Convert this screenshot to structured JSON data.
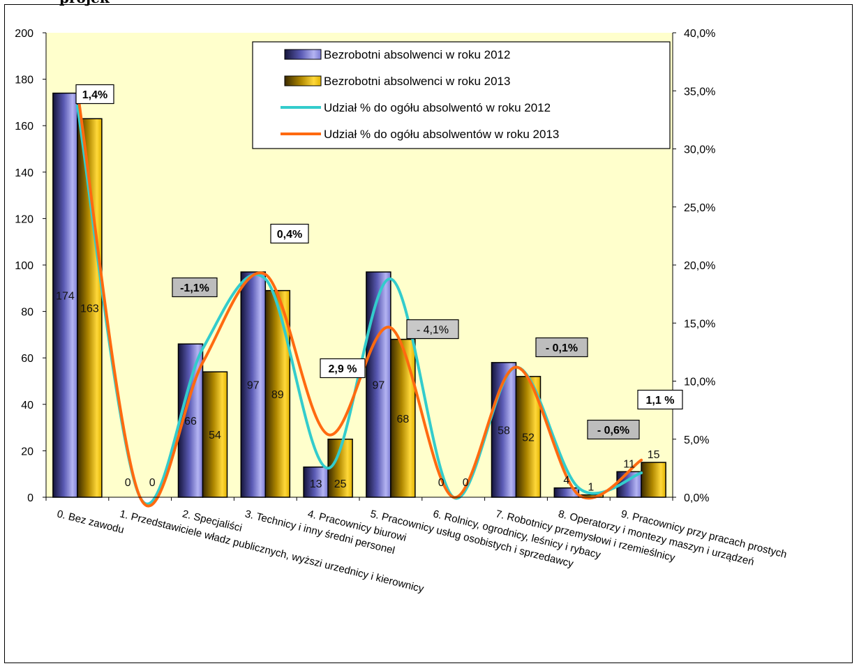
{
  "header_fragment": "projek",
  "chart_data": {
    "type": "bar",
    "categories": [
      "0. Bez zawodu",
      "1. Przedstawiciele władz publicznych, wyższi urzednicy i kierownicy",
      "2. Specjaliści",
      "3. Technicy i inny średni personel",
      "4. Pracownicy biurowi",
      "5. Pracownicy usług osobistych i sprzedawcy",
      "6. Rolnicy, ogrodnicy, leśnicy i rybacy",
      "7. Robotnicy przemysłowi i rzemieślnicy",
      "8. Operatorzy i montezy maszyn i urządzeń",
      "9. Pracownicy przy pracach prostych"
    ],
    "series": [
      {
        "name": "Bezrobotni absolwenci w roku 2012",
        "kind": "bar",
        "axis": "left",
        "values": [
          174,
          0,
          66,
          97,
          13,
          97,
          0,
          58,
          4,
          11
        ],
        "color": "#6e6ec8"
      },
      {
        "name": "Bezrobotni absolwenci w roku 2013",
        "kind": "bar",
        "axis": "left",
        "values": [
          163,
          0,
          54,
          89,
          25,
          68,
          0,
          52,
          1,
          15
        ],
        "color": "#d4a800"
      },
      {
        "name": "Udział % do ogółu absolwentó w roku 2012",
        "kind": "line",
        "axis": "right",
        "values": [
          33.7,
          0.0,
          12.8,
          18.8,
          2.5,
          18.8,
          0.0,
          11.2,
          0.8,
          2.1
        ],
        "color": "#33cccc"
      },
      {
        "name": "Udział % do ogółu absolwentów w roku 2013",
        "kind": "line",
        "axis": "right",
        "values": [
          35.0,
          0.0,
          11.6,
          19.2,
          5.4,
          14.6,
          0.0,
          11.2,
          0.2,
          3.2
        ],
        "color": "#ff6a10"
      }
    ],
    "data_labels": {
      "series_2012": [
        "174",
        "0",
        "66",
        "97",
        "13",
        "97",
        "0",
        "58",
        "4",
        "11"
      ],
      "series_2013": [
        "163",
        "0",
        "54",
        "89",
        "25",
        "68",
        "0",
        "52",
        "1",
        "15"
      ]
    },
    "annotations": [
      {
        "text": "1,4%",
        "category": 0,
        "style": "white"
      },
      {
        "text": "-1,1%",
        "category": 2,
        "style": "gray"
      },
      {
        "text": "0,4%",
        "category": 3,
        "style": "white"
      },
      {
        "text": "2,9 %",
        "category": 4,
        "style": "white"
      },
      {
        "text": "- 4,1%",
        "category": 5,
        "style": "gray-light"
      },
      {
        "text": "- 0,1%",
        "category": 7,
        "style": "gray"
      },
      {
        "text": "- 0,6%",
        "category": 8,
        "style": "gray"
      },
      {
        "text": "1,1 %",
        "category": 9,
        "style": "white"
      }
    ],
    "y_left": {
      "min": 0,
      "max": 200,
      "ticks": [
        "0",
        "20",
        "40",
        "60",
        "80",
        "100",
        "120",
        "140",
        "160",
        "180",
        "200"
      ]
    },
    "y_right": {
      "min": 0,
      "max": 40,
      "ticks": [
        "0,0%",
        "5,0%",
        "10,0%",
        "15,0%",
        "20,0%",
        "25,0%",
        "30,0%",
        "35,0%",
        "40,0%"
      ]
    },
    "plot_background": "#ffffcc",
    "legend_position": "top-right",
    "grid": false
  }
}
